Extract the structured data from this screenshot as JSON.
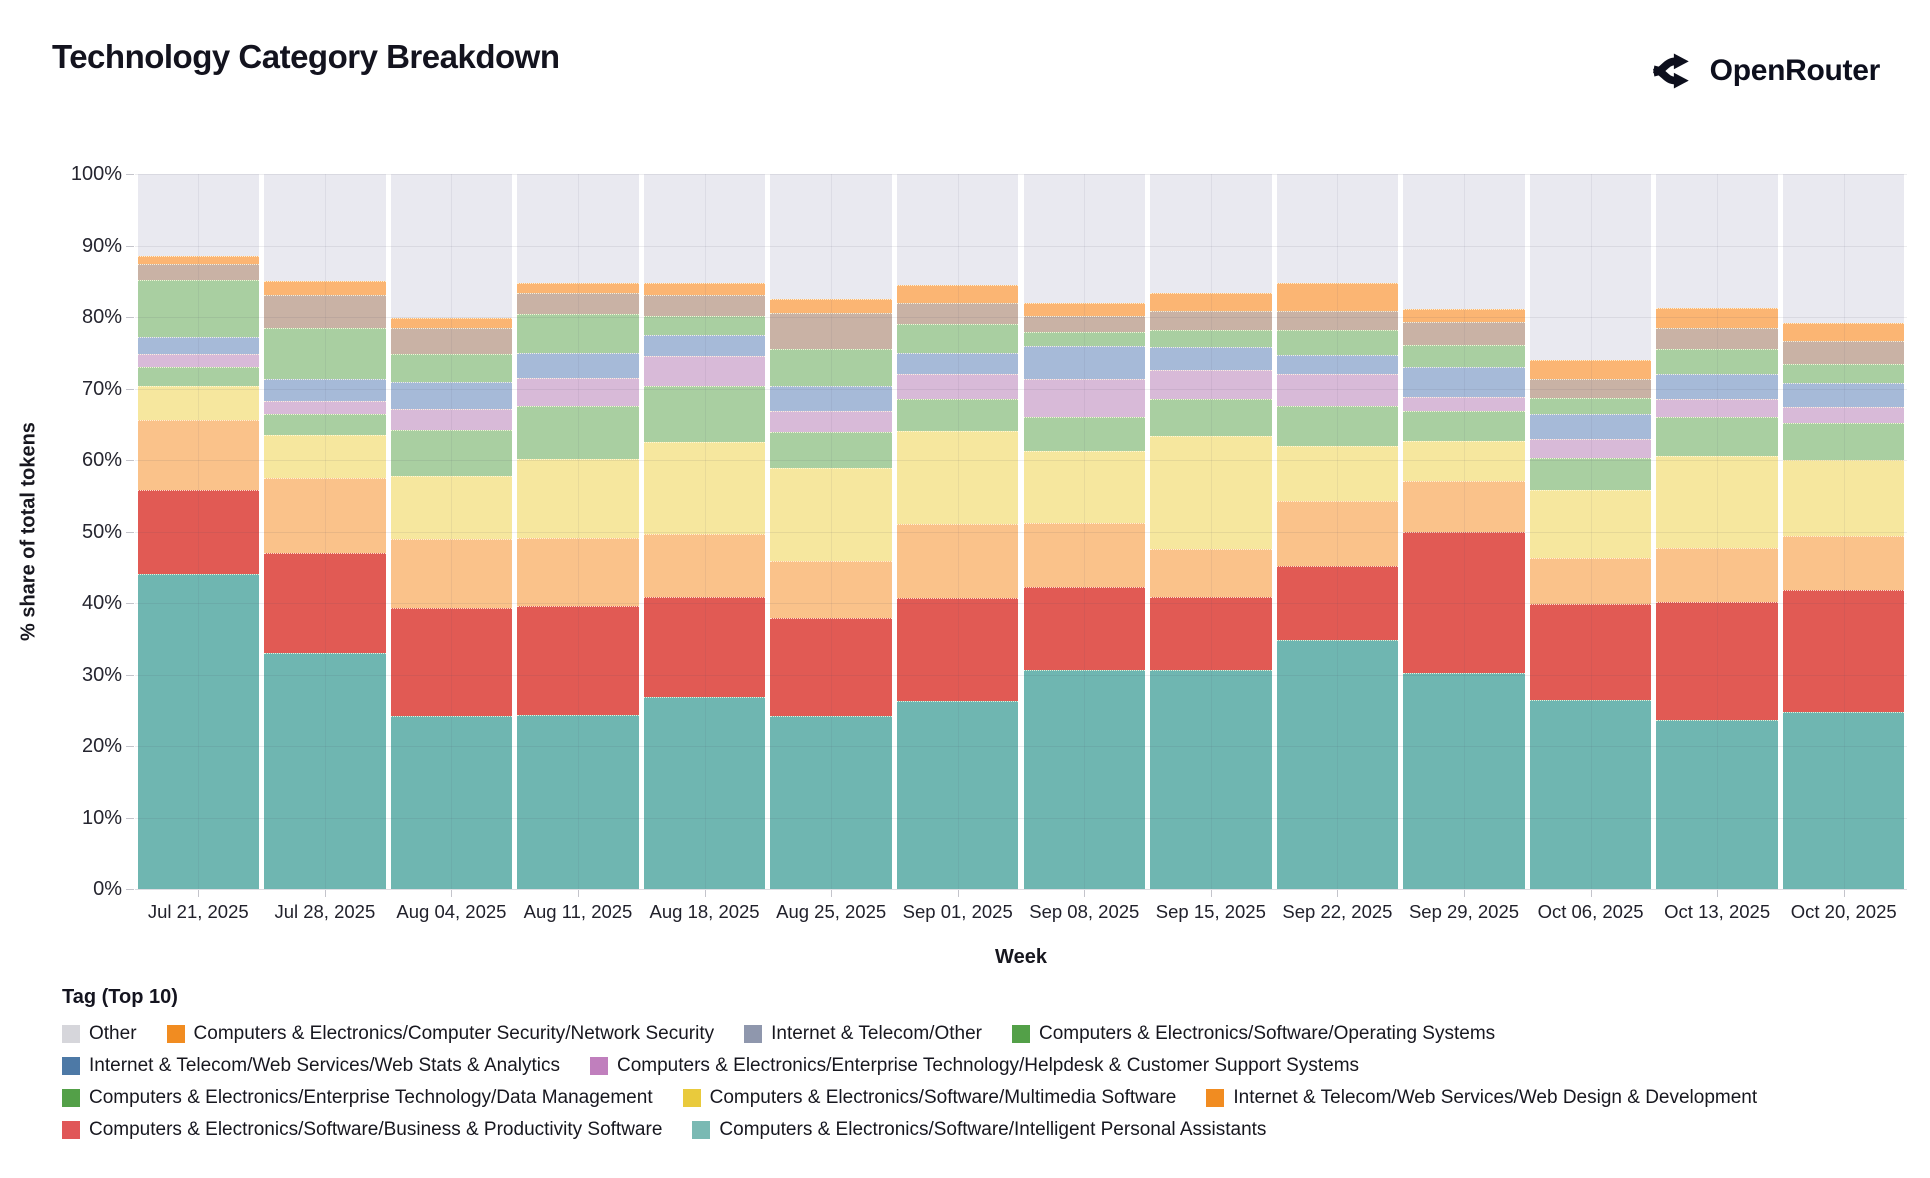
{
  "header": {
    "title": "Technology Category Breakdown",
    "brand": "OpenRouter",
    "brand_icon": "openrouter-fork-icon"
  },
  "chart_data": {
    "type": "bar",
    "variant": "stacked-100-percent",
    "title": "Technology Category Breakdown",
    "xlabel": "Week",
    "ylabel": "% share of total tokens",
    "ylim": [
      0,
      100
    ],
    "ytick_step": 10,
    "ytick_suffix": "%",
    "grid": true,
    "categories": [
      "Jul 21, 2025",
      "Jul 28, 2025",
      "Aug 04, 2025",
      "Aug 11, 2025",
      "Aug 18, 2025",
      "Aug 25, 2025",
      "Sep 01, 2025",
      "Sep 08, 2025",
      "Sep 15, 2025",
      "Sep 22, 2025",
      "Sep 29, 2025",
      "Oct 06, 2025",
      "Oct 13, 2025",
      "Oct 20, 2025"
    ],
    "series": [
      {
        "name": "Computers & Electronics/Software/Intelligent Personal Assistants",
        "color": "#6fb6b1",
        "legend_color": "#7ab9b3",
        "values": [
          44.0,
          33.0,
          24.2,
          24.3,
          26.8,
          24.2,
          26.3,
          30.6,
          30.6,
          34.8,
          30.2,
          26.5,
          23.6,
          24.8
        ]
      },
      {
        "name": "Computers & Electronics/Software/Business & Productivity Software",
        "color": "#e15a54",
        "legend_color": "#e05758",
        "values": [
          11.8,
          14.0,
          15.1,
          15.3,
          14.0,
          13.7,
          14.4,
          11.7,
          10.2,
          10.4,
          19.7,
          13.3,
          16.5,
          17.0
        ]
      },
      {
        "name": "Internet & Telecom/Web Services/Web Design & Development",
        "color": "#fac28a",
        "legend_color": "#f18c21",
        "values": [
          9.8,
          10.5,
          9.6,
          9.5,
          8.9,
          8.0,
          10.4,
          8.9,
          6.7,
          9.0,
          7.1,
          6.5,
          7.6,
          7.6
        ]
      },
      {
        "name": "Computers & Electronics/Software/Multimedia Software",
        "color": "#f6e79e",
        "legend_color": "#e9ca3c",
        "values": [
          4.8,
          6.0,
          8.8,
          11.0,
          12.8,
          13.0,
          12.9,
          10.1,
          15.8,
          7.7,
          5.7,
          9.5,
          12.8,
          10.6
        ]
      },
      {
        "name": "Computers & Electronics/Enterprise Technology/Data Management",
        "color": "#a9cfa1",
        "legend_color": "#53a048",
        "values": [
          2.6,
          2.9,
          6.5,
          7.4,
          7.8,
          5.0,
          4.5,
          4.7,
          5.3,
          5.7,
          4.2,
          4.5,
          5.5,
          5.2
        ]
      },
      {
        "name": "Computers & Electronics/Enterprise Technology/Helpdesk & Customer Support Systems",
        "color": "#d8bad8",
        "legend_color": "#c07fbd",
        "pattern": "dots",
        "values": [
          1.8,
          1.8,
          3.0,
          4.0,
          4.2,
          3.0,
          3.5,
          5.4,
          4.0,
          4.5,
          1.9,
          2.7,
          2.5,
          2.2
        ]
      },
      {
        "name": "Internet & Telecom/Web Services/Web Stats & Analytics",
        "color": "#a6bad8",
        "legend_color": "#4d79a6",
        "values": [
          2.4,
          3.1,
          3.7,
          3.5,
          3.0,
          3.4,
          3.0,
          4.5,
          3.2,
          2.6,
          4.2,
          3.5,
          3.5,
          3.4
        ]
      },
      {
        "name": "Computers & Electronics/Software/Operating Systems",
        "color": "#a9cfa1",
        "legend_color": "#53a048",
        "values": [
          8.0,
          7.2,
          3.9,
          5.4,
          2.6,
          5.2,
          4.0,
          2.0,
          2.4,
          3.5,
          3.1,
          2.2,
          3.5,
          2.6
        ]
      },
      {
        "name": "Internet & Telecom/Other",
        "color": "#c9b2a5",
        "legend_color": "#8f97ad",
        "pattern": "dots-dense",
        "values": [
          2.2,
          4.6,
          3.6,
          2.9,
          3.0,
          5.0,
          3.0,
          2.2,
          2.7,
          2.7,
          3.2,
          2.6,
          3.0,
          3.2
        ]
      },
      {
        "name": "Computers & Electronics/Computer Security/Network Security",
        "color": "#fbb573",
        "legend_color": "#f18c21",
        "values": [
          1.2,
          2.0,
          1.5,
          1.5,
          1.6,
          2.0,
          2.5,
          1.8,
          2.5,
          3.8,
          1.8,
          2.7,
          2.8,
          2.6
        ]
      },
      {
        "name": "Other",
        "color": "#e9e9f0",
        "legend_color": "#d6d6db",
        "values": [
          11.4,
          14.9,
          20.1,
          15.2,
          15.3,
          17.5,
          15.5,
          18.1,
          16.6,
          15.3,
          18.9,
          26.0,
          18.7,
          20.8
        ]
      }
    ],
    "legend_title": "Tag (Top 10)",
    "legend_position": "bottom-left",
    "legend_rows": [
      [
        10,
        9,
        8,
        7
      ],
      [
        6,
        5
      ],
      [
        4,
        3,
        2
      ],
      [
        1,
        0
      ]
    ]
  }
}
